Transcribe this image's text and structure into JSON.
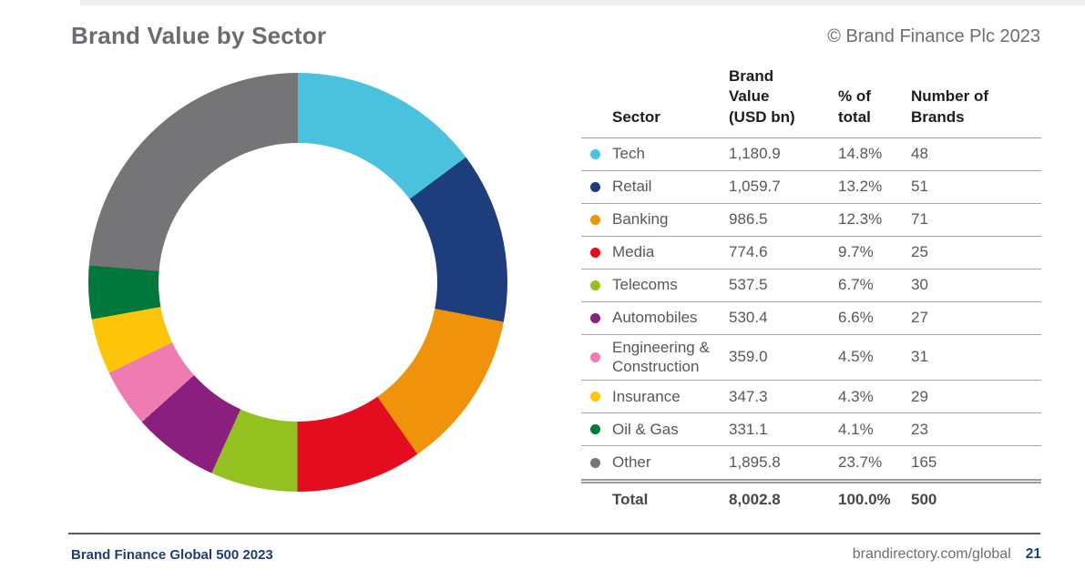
{
  "page": {
    "title": "Brand Value by Sector",
    "copyright": "© Brand Finance Plc 2023",
    "footer_left": "Brand Finance Global 500 2023",
    "footer_url": "brandirectory.com/global",
    "footer_page_number": "21"
  },
  "table": {
    "headers": {
      "sector": "Sector",
      "value": "Brand\nValue\n(USD bn)",
      "pct": "% of\ntotal",
      "num": "Number of\nBrands"
    },
    "rows": [
      {
        "sector": "Tech",
        "value": "1,180.9",
        "pct": "14.8%",
        "num": "48"
      },
      {
        "sector": "Retail",
        "value": "1,059.7",
        "pct": "13.2%",
        "num": "51"
      },
      {
        "sector": "Banking",
        "value": "986.5",
        "pct": "12.3%",
        "num": "71"
      },
      {
        "sector": "Media",
        "value": "774.6",
        "pct": "9.7%",
        "num": "25"
      },
      {
        "sector": "Telecoms",
        "value": "537.5",
        "pct": "6.7%",
        "num": "30"
      },
      {
        "sector": "Automobiles",
        "value": "530.4",
        "pct": "6.6%",
        "num": "27"
      },
      {
        "sector": "Engineering & Construction",
        "value": "359.0",
        "pct": "4.5%",
        "num": "31"
      },
      {
        "sector": "Insurance",
        "value": "347.3",
        "pct": "4.3%",
        "num": "29"
      },
      {
        "sector": "Oil & Gas",
        "value": "331.1",
        "pct": "4.1%",
        "num": "23"
      },
      {
        "sector": "Other",
        "value": "1,895.8",
        "pct": "23.7%",
        "num": "165"
      }
    ],
    "total": {
      "label": "Total",
      "value": "8,002.8",
      "pct": "100.0%",
      "num": "500"
    }
  },
  "chart_data": {
    "type": "pie",
    "subtype": "donut",
    "title": "Brand Value by Sector",
    "categories": [
      "Tech",
      "Retail",
      "Banking",
      "Media",
      "Telecoms",
      "Automobiles",
      "Engineering & Construction",
      "Insurance",
      "Oil & Gas",
      "Other"
    ],
    "series": [
      {
        "name": "% of total",
        "values": [
          14.8,
          13.2,
          12.3,
          9.7,
          6.7,
          6.6,
          4.5,
          4.3,
          4.1,
          23.7
        ]
      },
      {
        "name": "Brand Value (USD bn)",
        "values": [
          1180.9,
          1059.7,
          986.5,
          774.6,
          537.5,
          530.4,
          359.0,
          347.3,
          331.1,
          1895.8
        ]
      },
      {
        "name": "Number of Brands",
        "values": [
          48,
          51,
          71,
          25,
          30,
          27,
          31,
          29,
          23,
          165
        ]
      }
    ],
    "colors": [
      "#4bc2dd",
      "#1e3d7d",
      "#f0930c",
      "#e40c1f",
      "#93c11f",
      "#8a1f80",
      "#ee7cb3",
      "#fcc50a",
      "#00783b",
      "#757577"
    ],
    "start_angle_deg": 0,
    "direction": "clockwise",
    "inner_radius_ratio": 0.665,
    "legend_position": "table-right",
    "accent_blue": "#1f3c7d",
    "text_gray": "#58585a"
  }
}
